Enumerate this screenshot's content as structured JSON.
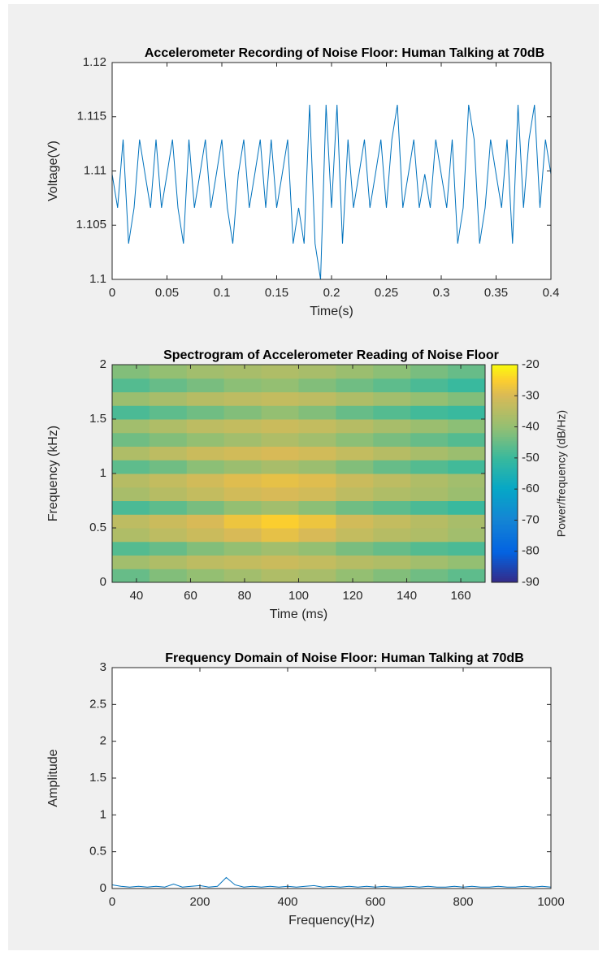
{
  "chart_data": [
    {
      "type": "line",
      "title": "Accelerometer Recording of Noise Floor: Human Talking at 70dB",
      "xlabel": "Time(s)",
      "ylabel": "Voltage(V)",
      "x": [
        0,
        0.005,
        0.01,
        0.015,
        0.02,
        0.025,
        0.03,
        0.035,
        0.04,
        0.045,
        0.05,
        0.055,
        0.06,
        0.065,
        0.07,
        0.075,
        0.08,
        0.085,
        0.09,
        0.095,
        0.1,
        0.105,
        0.11,
        0.115,
        0.12,
        0.125,
        0.13,
        0.135,
        0.14,
        0.145,
        0.15,
        0.155,
        0.16,
        0.165,
        0.17,
        0.175,
        0.18,
        0.185,
        0.19,
        0.195,
        0.2,
        0.205,
        0.21,
        0.215,
        0.22,
        0.225,
        0.23,
        0.235,
        0.24,
        0.245,
        0.25,
        0.255,
        0.26,
        0.265,
        0.27,
        0.275,
        0.28,
        0.285,
        0.29,
        0.295,
        0.3,
        0.305,
        0.31,
        0.315,
        0.32,
        0.325,
        0.33,
        0.335,
        0.34,
        0.345,
        0.35,
        0.355,
        0.36,
        0.365,
        0.37,
        0.375,
        0.38,
        0.385,
        0.39,
        0.395,
        0.4
      ],
      "series": [
        {
          "color": "#0072bd",
          "values": [
            1.1097,
            1.1066,
            1.1129,
            1.1033,
            1.1066,
            1.1129,
            1.1097,
            1.1066,
            1.1129,
            1.1066,
            1.1097,
            1.1129,
            1.1066,
            1.1033,
            1.1129,
            1.1066,
            1.1097,
            1.1129,
            1.1066,
            1.1097,
            1.1129,
            1.1066,
            1.1033,
            1.1097,
            1.1129,
            1.1066,
            1.1097,
            1.1129,
            1.1066,
            1.1129,
            1.1066,
            1.1097,
            1.1129,
            1.1033,
            1.1066,
            1.1033,
            1.1161,
            1.1033,
            1.1,
            1.1161,
            1.1066,
            1.1161,
            1.1033,
            1.1129,
            1.1066,
            1.1097,
            1.1129,
            1.1066,
            1.1097,
            1.1129,
            1.1066,
            1.1129,
            1.1161,
            1.1066,
            1.1097,
            1.1129,
            1.1066,
            1.1097,
            1.1066,
            1.1129,
            1.1097,
            1.1066,
            1.1129,
            1.1033,
            1.1066,
            1.1161,
            1.1129,
            1.1033,
            1.1066,
            1.1129,
            1.1097,
            1.1066,
            1.1129,
            1.1033,
            1.1161,
            1.1066,
            1.1129,
            1.1161,
            1.1066,
            1.1129,
            1.1097
          ]
        }
      ],
      "xlim": [
        0,
        0.4
      ],
      "xticks": [
        0,
        0.05,
        0.1,
        0.15,
        0.2,
        0.25,
        0.3,
        0.35,
        0.4
      ],
      "ylim": [
        1.1,
        1.12
      ],
      "yticks": [
        1.1,
        1.105,
        1.11,
        1.115,
        1.12
      ],
      "grid": false
    },
    {
      "type": "heatmap",
      "title": "Spectrogram of Accelerometer Reading of Noise Floor",
      "xlabel": "Time (ms)",
      "ylabel": "Frequency (kHz)",
      "colormap": "parula",
      "colorbar_label": "Power/frequency (dB/Hz)",
      "clim": [
        -90,
        -20
      ],
      "cticks": [
        -90,
        -80,
        -70,
        -60,
        -50,
        -40,
        -30,
        -20
      ],
      "x": [
        37.9,
        51.7,
        65.5,
        79.3,
        93.1,
        106.9,
        120.7,
        134.5,
        148.3,
        162.1
      ],
      "y": [
        0.0625,
        0.1875,
        0.3125,
        0.4375,
        0.5625,
        0.6875,
        0.8125,
        0.9375,
        1.0625,
        1.1875,
        1.3125,
        1.4375,
        1.5625,
        1.6875,
        1.8125,
        1.9375
      ],
      "z": [
        [
          -45,
          -42,
          -40,
          -38,
          -36,
          -37,
          -40,
          -42,
          -44,
          -46
        ],
        [
          -38,
          -36,
          -34,
          -33,
          -32,
          -33,
          -35,
          -36,
          -38,
          -40
        ],
        [
          -47,
          -45,
          -42,
          -40,
          -38,
          -40,
          -43,
          -45,
          -47,
          -48
        ],
        [
          -36,
          -34,
          -32,
          -30,
          -28,
          -30,
          -33,
          -35,
          -36,
          -38
        ],
        [
          -34,
          -32,
          -30,
          -27,
          -25,
          -27,
          -31,
          -33,
          -35,
          -37
        ],
        [
          -48,
          -46,
          -43,
          -40,
          -38,
          -41,
          -44,
          -46,
          -48,
          -50
        ],
        [
          -37,
          -35,
          -33,
          -31,
          -30,
          -31,
          -34,
          -36,
          -37,
          -39
        ],
        [
          -35,
          -33,
          -31,
          -29,
          -28,
          -29,
          -32,
          -34,
          -36,
          -38
        ],
        [
          -46,
          -44,
          -41,
          -39,
          -37,
          -39,
          -42,
          -45,
          -47,
          -49
        ],
        [
          -36,
          -34,
          -32,
          -31,
          -30,
          -31,
          -33,
          -35,
          -37,
          -39
        ],
        [
          -44,
          -42,
          -40,
          -38,
          -36,
          -38,
          -41,
          -43,
          -45,
          -47
        ],
        [
          -38,
          -36,
          -34,
          -33,
          -32,
          -33,
          -35,
          -37,
          -39,
          -41
        ],
        [
          -48,
          -46,
          -44,
          -42,
          -40,
          -42,
          -45,
          -47,
          -49,
          -50
        ],
        [
          -39,
          -37,
          -35,
          -34,
          -33,
          -34,
          -36,
          -38,
          -40,
          -42
        ],
        [
          -47,
          -45,
          -43,
          -41,
          -40,
          -42,
          -44,
          -46,
          -48,
          -50
        ],
        [
          -42,
          -40,
          -38,
          -37,
          -36,
          -37,
          -39,
          -41,
          -43,
          -45
        ]
      ],
      "xlim": [
        31,
        169
      ],
      "xticks": [
        40,
        60,
        80,
        100,
        120,
        140,
        160
      ],
      "ylim": [
        0,
        2
      ],
      "yticks": [
        0,
        0.5,
        1,
        1.5,
        2
      ]
    },
    {
      "type": "line",
      "title": "Frequency Domain of Noise Floor: Human Talking at 70dB",
      "xlabel": "Frequency(Hz)",
      "ylabel": "Amplitude",
      "x": [
        0,
        20,
        40,
        60,
        80,
        100,
        120,
        140,
        160,
        180,
        200,
        220,
        240,
        260,
        280,
        300,
        320,
        340,
        360,
        380,
        400,
        420,
        440,
        460,
        480,
        500,
        520,
        540,
        560,
        580,
        600,
        620,
        640,
        660,
        680,
        700,
        720,
        740,
        760,
        780,
        800,
        820,
        840,
        860,
        880,
        900,
        920,
        940,
        960,
        980,
        1000
      ],
      "series": [
        {
          "color": "#0072bd",
          "values": [
            0.05,
            0.03,
            0.02,
            0.03,
            0.02,
            0.03,
            0.02,
            0.06,
            0.02,
            0.03,
            0.04,
            0.02,
            0.03,
            0.15,
            0.05,
            0.02,
            0.03,
            0.02,
            0.03,
            0.02,
            0.03,
            0.02,
            0.03,
            0.04,
            0.02,
            0.03,
            0.02,
            0.03,
            0.02,
            0.03,
            0.02,
            0.03,
            0.02,
            0.02,
            0.03,
            0.02,
            0.03,
            0.02,
            0.02,
            0.03,
            0.02,
            0.03,
            0.02,
            0.02,
            0.03,
            0.02,
            0.02,
            0.03,
            0.02,
            0.03,
            0.02
          ]
        }
      ],
      "xlim": [
        0,
        1000
      ],
      "xticks": [
        0,
        200,
        400,
        600,
        800,
        1000
      ],
      "ylim": [
        0,
        3
      ],
      "yticks": [
        0,
        0.5,
        1,
        1.5,
        2,
        2.5,
        3
      ],
      "grid": false
    }
  ]
}
